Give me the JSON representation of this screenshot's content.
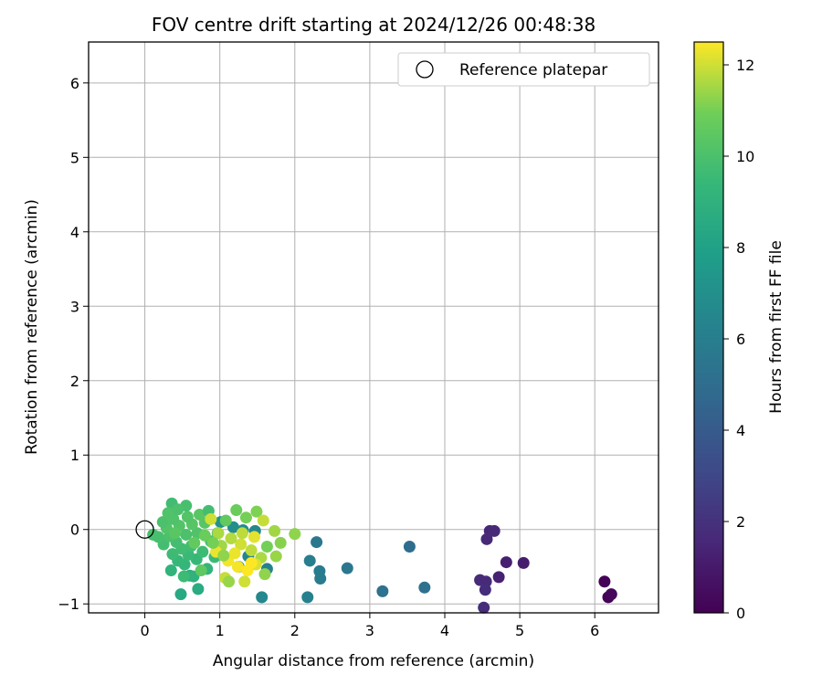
{
  "chart_data": {
    "type": "scatter",
    "title": "FOV centre drift starting at 2024/12/26 00:48:38",
    "xlabel": "Angular distance from reference (arcmin)",
    "ylabel": "Rotation from reference (arcmin)",
    "xlim": [
      -0.75,
      6.85
    ],
    "ylim": [
      -1.12,
      6.55
    ],
    "xticks": [
      "0",
      "1",
      "2",
      "3",
      "4",
      "5",
      "6"
    ],
    "yticks": [
      "−1",
      "0",
      "1",
      "2",
      "3",
      "4",
      "5",
      "6"
    ],
    "grid": true,
    "legend": {
      "location": "top-right",
      "entries": [
        {
          "label": "Reference platepar",
          "marker": "open-circle"
        }
      ]
    },
    "reference_point": {
      "x": 0,
      "y": 0
    },
    "colorbar": {
      "label": "Hours from first FF file",
      "colormap": "viridis",
      "range": [
        0,
        12.5
      ],
      "ticks": [
        "0",
        "2",
        "4",
        "6",
        "8",
        "10",
        "12"
      ]
    },
    "points": [
      {
        "x": 6.13,
        "y": -0.7,
        "c": 0.1
      },
      {
        "x": 6.18,
        "y": -0.91,
        "c": 0.1
      },
      {
        "x": 6.22,
        "y": -0.87,
        "c": 0.2
      },
      {
        "x": 5.05,
        "y": -0.45,
        "c": 1.1
      },
      {
        "x": 4.82,
        "y": -0.44,
        "c": 1.2
      },
      {
        "x": 4.72,
        "y": -0.64,
        "c": 1.3
      },
      {
        "x": 4.6,
        "y": -0.02,
        "c": 1.5
      },
      {
        "x": 4.66,
        "y": -0.02,
        "c": 1.6
      },
      {
        "x": 4.56,
        "y": -0.13,
        "c": 1.6
      },
      {
        "x": 4.47,
        "y": -0.68,
        "c": 1.7
      },
      {
        "x": 4.55,
        "y": -0.7,
        "c": 1.7
      },
      {
        "x": 4.54,
        "y": -0.81,
        "c": 1.8
      },
      {
        "x": 4.52,
        "y": -1.05,
        "c": 1.8
      },
      {
        "x": 3.53,
        "y": -0.23,
        "c": 5.0
      },
      {
        "x": 3.73,
        "y": -0.78,
        "c": 5.2
      },
      {
        "x": 3.17,
        "y": -0.83,
        "c": 5.3
      },
      {
        "x": 2.7,
        "y": -0.52,
        "c": 5.6
      },
      {
        "x": 2.29,
        "y": -0.17,
        "c": 5.6
      },
      {
        "x": 2.33,
        "y": -0.56,
        "c": 5.8
      },
      {
        "x": 2.34,
        "y": -0.66,
        "c": 5.8
      },
      {
        "x": 2.2,
        "y": -0.42,
        "c": 6.0
      },
      {
        "x": 2.17,
        "y": -0.91,
        "c": 6.1
      },
      {
        "x": 1.56,
        "y": -0.91,
        "c": 6.6
      },
      {
        "x": 1.63,
        "y": -0.53,
        "c": 6.2
      },
      {
        "x": 1.25,
        "y": -0.5,
        "c": 6.3
      },
      {
        "x": 1.38,
        "y": -0.36,
        "c": 6.4
      },
      {
        "x": 1.47,
        "y": -0.02,
        "c": 6.5
      },
      {
        "x": 1.31,
        "y": -0.01,
        "c": 6.8
      },
      {
        "x": 1.18,
        "y": 0.03,
        "c": 6.9
      },
      {
        "x": 1.01,
        "y": 0.1,
        "c": 7.2
      },
      {
        "x": 0.48,
        "y": -0.87,
        "c": 8.5
      },
      {
        "x": 0.71,
        "y": -0.8,
        "c": 8.6
      },
      {
        "x": 0.6,
        "y": -0.62,
        "c": 8.8
      },
      {
        "x": 0.65,
        "y": -0.63,
        "c": 9.0
      },
      {
        "x": 0.35,
        "y": -0.55,
        "c": 9.1
      },
      {
        "x": 0.83,
        "y": -0.53,
        "c": 9.2
      },
      {
        "x": 0.53,
        "y": -0.47,
        "c": 9.3
      },
      {
        "x": 0.44,
        "y": -0.42,
        "c": 9.4
      },
      {
        "x": 0.69,
        "y": -0.4,
        "c": 9.4
      },
      {
        "x": 0.93,
        "y": -0.37,
        "c": 9.5
      },
      {
        "x": 0.58,
        "y": -0.34,
        "c": 9.5
      },
      {
        "x": 0.37,
        "y": -0.33,
        "c": 9.6
      },
      {
        "x": 0.77,
        "y": -0.3,
        "c": 9.6
      },
      {
        "x": 0.49,
        "y": -0.26,
        "c": 9.7
      },
      {
        "x": 0.62,
        "y": -0.22,
        "c": 9.7
      },
      {
        "x": 0.25,
        "y": -0.2,
        "c": 9.8
      },
      {
        "x": 0.42,
        "y": -0.17,
        "c": 9.8
      },
      {
        "x": 0.88,
        "y": -0.16,
        "c": 9.9
      },
      {
        "x": 0.18,
        "y": -0.1,
        "c": 9.9
      },
      {
        "x": 0.33,
        "y": -0.09,
        "c": 10.0
      },
      {
        "x": 0.55,
        "y": -0.07,
        "c": 10.0
      },
      {
        "x": 0.7,
        "y": -0.05,
        "c": 10.1
      },
      {
        "x": 0.97,
        "y": -0.05,
        "c": 10.1
      },
      {
        "x": 0.11,
        "y": -0.07,
        "c": 9.9
      },
      {
        "x": 0.29,
        "y": 0.02,
        "c": 10.2
      },
      {
        "x": 0.46,
        "y": 0.05,
        "c": 10.2
      },
      {
        "x": 0.63,
        "y": 0.07,
        "c": 10.3
      },
      {
        "x": 0.8,
        "y": 0.09,
        "c": 10.3
      },
      {
        "x": 0.24,
        "y": 0.1,
        "c": 10.0
      },
      {
        "x": 0.38,
        "y": 0.14,
        "c": 10.1
      },
      {
        "x": 0.57,
        "y": 0.17,
        "c": 10.2
      },
      {
        "x": 0.73,
        "y": 0.2,
        "c": 10.4
      },
      {
        "x": 0.85,
        "y": 0.25,
        "c": 9.8
      },
      {
        "x": 0.36,
        "y": 0.35,
        "c": 9.7
      },
      {
        "x": 0.55,
        "y": 0.32,
        "c": 9.9
      },
      {
        "x": 0.44,
        "y": 0.27,
        "c": 10.0
      },
      {
        "x": 0.31,
        "y": 0.22,
        "c": 10.1
      },
      {
        "x": 1.08,
        "y": 0.12,
        "c": 10.6
      },
      {
        "x": 1.22,
        "y": 0.26,
        "c": 10.8
      },
      {
        "x": 1.35,
        "y": 0.16,
        "c": 11.0
      },
      {
        "x": 1.49,
        "y": 0.24,
        "c": 11.1
      },
      {
        "x": 1.58,
        "y": 0.12,
        "c": 11.9
      },
      {
        "x": 0.88,
        "y": 0.14,
        "c": 12.0
      },
      {
        "x": 1.73,
        "y": -0.02,
        "c": 11.5
      },
      {
        "x": 2.0,
        "y": -0.06,
        "c": 11.3
      },
      {
        "x": 1.81,
        "y": -0.18,
        "c": 11.2
      },
      {
        "x": 1.63,
        "y": -0.23,
        "c": 11.0
      },
      {
        "x": 1.75,
        "y": -0.36,
        "c": 11.4
      },
      {
        "x": 1.55,
        "y": -0.38,
        "c": 11.6
      },
      {
        "x": 1.42,
        "y": -0.28,
        "c": 11.8
      },
      {
        "x": 1.28,
        "y": -0.2,
        "c": 12.0
      },
      {
        "x": 1.15,
        "y": -0.12,
        "c": 11.7
      },
      {
        "x": 1.02,
        "y": -0.22,
        "c": 11.5
      },
      {
        "x": 0.95,
        "y": -0.3,
        "c": 12.3
      },
      {
        "x": 1.11,
        "y": -0.42,
        "c": 12.4
      },
      {
        "x": 1.24,
        "y": -0.5,
        "c": 12.4
      },
      {
        "x": 1.37,
        "y": -0.55,
        "c": 12.5
      },
      {
        "x": 1.48,
        "y": -0.47,
        "c": 12.1
      },
      {
        "x": 1.6,
        "y": -0.6,
        "c": 11.3
      },
      {
        "x": 1.33,
        "y": -0.7,
        "c": 12.0
      },
      {
        "x": 1.07,
        "y": -0.65,
        "c": 11.9
      },
      {
        "x": 1.12,
        "y": -0.7,
        "c": 11.4
      },
      {
        "x": 1.42,
        "y": -0.45,
        "c": 12.5
      },
      {
        "x": 1.3,
        "y": -0.05,
        "c": 11.8
      },
      {
        "x": 1.46,
        "y": -0.1,
        "c": 12.2
      },
      {
        "x": 1.2,
        "y": -0.32,
        "c": 12.3
      },
      {
        "x": 0.98,
        "y": -0.05,
        "c": 11.6
      },
      {
        "x": 0.91,
        "y": -0.18,
        "c": 11.0
      },
      {
        "x": 0.8,
        "y": -0.08,
        "c": 10.8
      },
      {
        "x": 1.05,
        "y": -0.35,
        "c": 11.3
      },
      {
        "x": 0.75,
        "y": -0.55,
        "c": 10.5
      },
      {
        "x": 0.52,
        "y": -0.63,
        "c": 9.6
      },
      {
        "x": 0.4,
        "y": -0.05,
        "c": 10.4
      },
      {
        "x": 0.66,
        "y": -0.18,
        "c": 10.6
      }
    ]
  }
}
